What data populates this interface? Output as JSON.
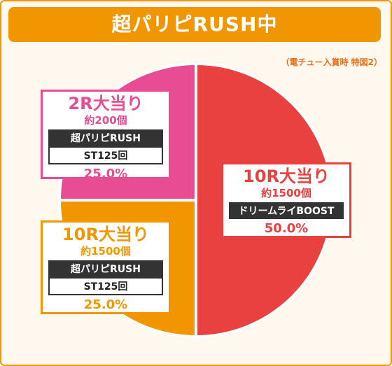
{
  "title": "超パリピRUSH中",
  "note": "（電チュー入賞時 特図2）",
  "colors": {
    "pink": "#e84c93",
    "red": "#e84140",
    "orange": "#f29600"
  },
  "chart_data": {
    "type": "pie",
    "slices": [
      {
        "label": "10R大当り",
        "detail": "約1500個",
        "mode": "ドリームライBOOST",
        "value": 50.0,
        "percent_text": "50.0%",
        "color": "#e84140"
      },
      {
        "label": "10R大当り",
        "detail": "約1500個",
        "mode": "超パリピRUSH",
        "st": "ST125回",
        "value": 25.0,
        "percent_text": "25.0%",
        "color": "#f29600"
      },
      {
        "label": "2R大当り",
        "detail": "約200個",
        "mode": "超パリピRUSH",
        "st": "ST125回",
        "value": 25.0,
        "percent_text": "25.0%",
        "color": "#e84c93"
      }
    ]
  }
}
